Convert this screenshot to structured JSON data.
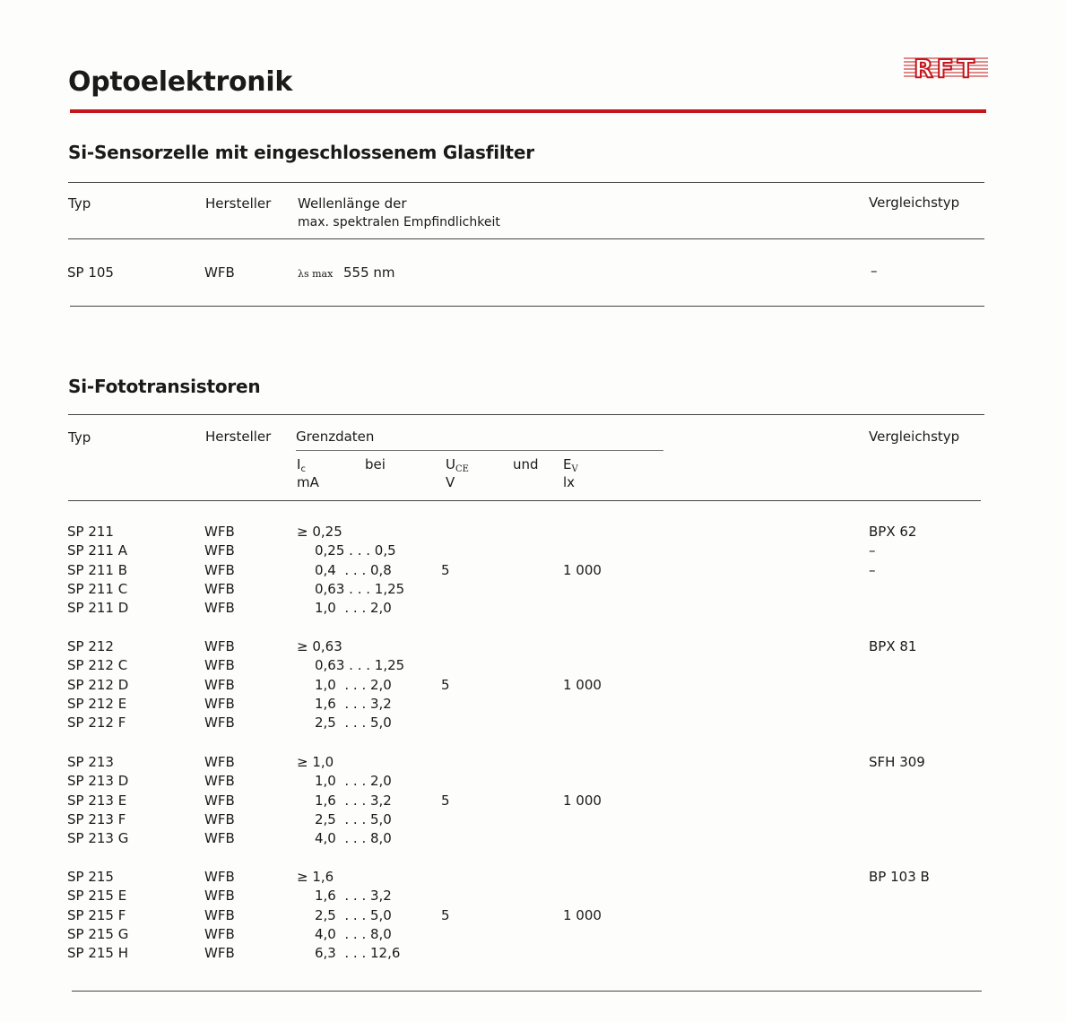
{
  "page_title": "Optoelektronik",
  "logo": "RFT",
  "accent_color": "#c4161c",
  "section1": {
    "title": "Si-Sensorzelle mit eingeschlossenem Glasfilter",
    "headers": {
      "typ": "Typ",
      "hersteller": "Hersteller",
      "wl1": "Wellenlänge der",
      "wl2": "max. spektralen Empfindlichkeit",
      "vergleich": "Vergleichstyp"
    },
    "row": {
      "typ": "SP 105",
      "hersteller": "WFB",
      "lambda": "λs max",
      "value": "555 nm",
      "vergleich": "–"
    }
  },
  "section2": {
    "title": "Si-Fototransistoren",
    "headers": {
      "typ": "Typ",
      "hersteller": "Hersteller",
      "grenzdaten": "Grenzdaten",
      "ic": "I",
      "ic_sub": "c",
      "ic_unit": "mA",
      "bei": "bei",
      "uce": "U",
      "uce_sub": "CE",
      "uce_unit": "V",
      "und": "und",
      "ev": "E",
      "ev_sub": "V",
      "ev_unit": "lx",
      "vergleich": "Vergleichstyp"
    },
    "groups": [
      {
        "uce": "5",
        "ev": "1 000",
        "rows": [
          {
            "typ": "SP 211",
            "hersteller": "WFB",
            "ic": "≥ 0,25",
            "vergleich": "BPX 62"
          },
          {
            "typ": "SP 211 A",
            "hersteller": "WFB",
            "ic": "0,25 . . . 0,5",
            "vergleich": "–"
          },
          {
            "typ": "SP 211 B",
            "hersteller": "WFB",
            "ic": "0,4  . . . 0,8",
            "vergleich": "–"
          },
          {
            "typ": "SP 211 C",
            "hersteller": "WFB",
            "ic": "0,63 . . . 1,25",
            "vergleich": ""
          },
          {
            "typ": "SP 211 D",
            "hersteller": "WFB",
            "ic": "1,0  . . . 2,0",
            "vergleich": ""
          }
        ]
      },
      {
        "uce": "5",
        "ev": "1 000",
        "rows": [
          {
            "typ": "SP 212",
            "hersteller": "WFB",
            "ic": "≥ 0,63",
            "vergleich": "BPX 81"
          },
          {
            "typ": "SP 212 C",
            "hersteller": "WFB",
            "ic": "0,63 . . . 1,25",
            "vergleich": ""
          },
          {
            "typ": "SP 212 D",
            "hersteller": "WFB",
            "ic": "1,0  . . . 2,0",
            "vergleich": ""
          },
          {
            "typ": "SP 212 E",
            "hersteller": "WFB",
            "ic": "1,6  . . . 3,2",
            "vergleich": ""
          },
          {
            "typ": "SP 212 F",
            "hersteller": "WFB",
            "ic": "2,5  . . . 5,0",
            "vergleich": ""
          }
        ]
      },
      {
        "uce": "5",
        "ev": "1 000",
        "rows": [
          {
            "typ": "SP 213",
            "hersteller": "WFB",
            "ic": "≥ 1,0",
            "vergleich": "SFH 309"
          },
          {
            "typ": "SP 213 D",
            "hersteller": "WFB",
            "ic": "1,0  . . . 2,0",
            "vergleich": ""
          },
          {
            "typ": "SP 213 E",
            "hersteller": "WFB",
            "ic": "1,6  . . . 3,2",
            "vergleich": ""
          },
          {
            "typ": "SP 213 F",
            "hersteller": "WFB",
            "ic": "2,5  . . . 5,0",
            "vergleich": ""
          },
          {
            "typ": "SP 213 G",
            "hersteller": "WFB",
            "ic": "4,0  . . . 8,0",
            "vergleich": ""
          }
        ]
      },
      {
        "uce": "5",
        "ev": "1 000",
        "rows": [
          {
            "typ": "SP 215",
            "hersteller": "WFB",
            "ic": "≥ 1,6",
            "vergleich": "BP 103 B"
          },
          {
            "typ": "SP 215 E",
            "hersteller": "WFB",
            "ic": "1,6  . . . 3,2",
            "vergleich": ""
          },
          {
            "typ": "SP 215 F",
            "hersteller": "WFB",
            "ic": "2,5  . . . 5,0",
            "vergleich": ""
          },
          {
            "typ": "SP 215 G",
            "hersteller": "WFB",
            "ic": "4,0  . . . 8,0",
            "vergleich": ""
          },
          {
            "typ": "SP 215 H",
            "hersteller": "WFB",
            "ic": "6,3  . . . 12,6",
            "vergleich": ""
          }
        ]
      }
    ]
  }
}
